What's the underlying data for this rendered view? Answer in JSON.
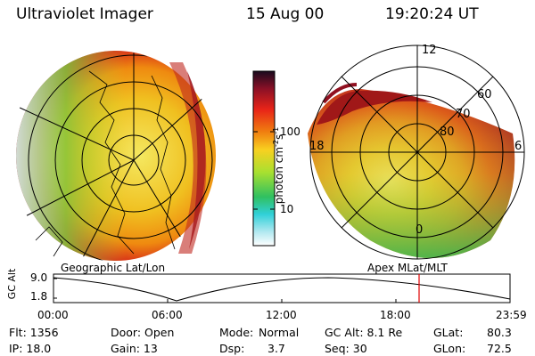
{
  "header": {
    "instrument": "Ultraviolet Imager",
    "date": "15 Aug 00",
    "time": "19:20:24 UT"
  },
  "colorbar": {
    "unit_label": "photon cm",
    "unit_exp1": "-2",
    "unit_mid": "s",
    "unit_exp2": "-1",
    "tick_100": "100",
    "tick_10": "10"
  },
  "left_panel": {
    "caption": "Geographic Lat/Lon"
  },
  "right_panel": {
    "caption": "Apex MLat/MLT",
    "mlt_12": "12",
    "mlt_18": "18",
    "mlt_6": "6",
    "mlt_0": "0",
    "lat_60": "60",
    "lat_70": "70",
    "lat_80": "80"
  },
  "altitude_plot": {
    "ylabel": "GC Alt",
    "ytick_top": "9.0",
    "ytick_bottom": "1.8",
    "xticks": [
      "00:00",
      "06:00",
      "12:00",
      "18:00",
      "23:59"
    ]
  },
  "info": {
    "flt": "Flt: 1356",
    "ip": "IP: 18.0",
    "door": "Door: Open",
    "gain": "Gain: 13",
    "mode_label": "Mode:",
    "mode_value": "Normal",
    "dsp_label": "Dsp:",
    "dsp_value": "3.7",
    "gcalt": "GC Alt: 8.1 Re",
    "seq": "Seq: 30",
    "glat_label": "GLat:",
    "glat_value": "80.3",
    "glon_label": "GLon:",
    "glon_value": "72.5"
  },
  "colors": {
    "marker": "#e00000",
    "grid": "#000000"
  }
}
